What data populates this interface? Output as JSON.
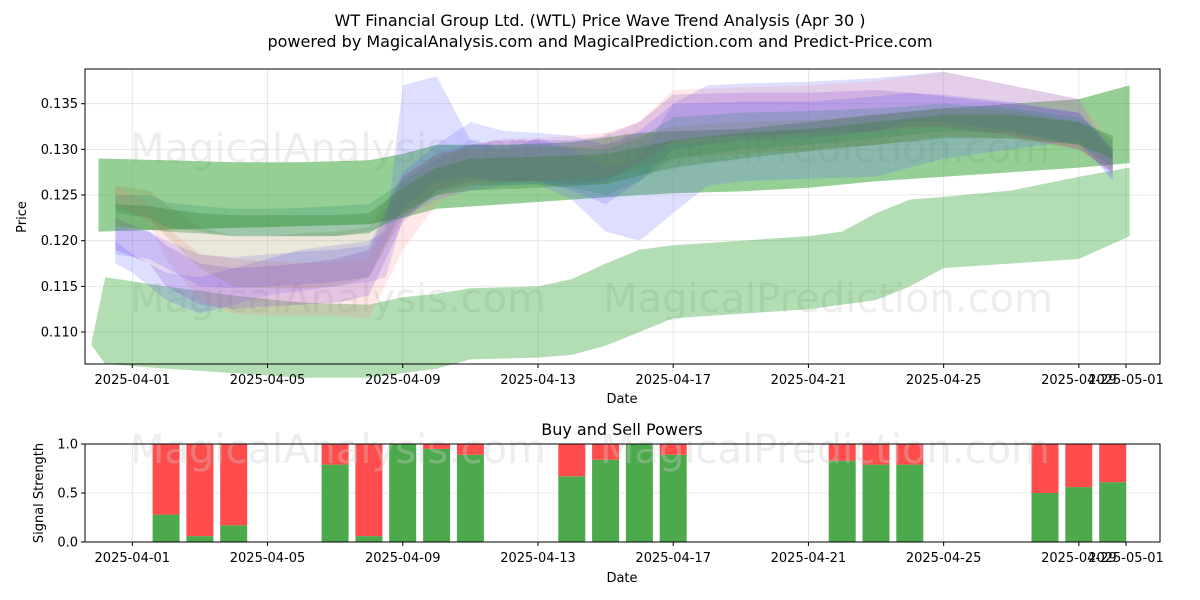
{
  "title_line1": "WT Financial Group Ltd. (WTL) Price Wave Trend Analysis (Apr 30 )",
  "title_line2": "powered by MagicalAnalysis.com and MagicalPrediction.com and Predict-Price.com",
  "watermarks": {
    "top_left": "MagicalAnalysis.com",
    "top_right": "MagicalPrediction.com",
    "mid_left": "MagicalAnalysis.com",
    "mid_right": "MagicalPrediction.com",
    "bottom_left": "MagicalAnalysis.com",
    "bottom_right": "MagicalPrediction.com"
  },
  "chart_data": [
    {
      "type": "area",
      "title": "",
      "xlabel": "Date",
      "ylabel": "Price",
      "xlim": [
        -1.4,
        30.4
      ],
      "ylim": [
        0.1065,
        0.1388
      ],
      "grid": true,
      "x_ticks": [
        {
          "pos": 0,
          "label": "2025-04-01"
        },
        {
          "pos": 4,
          "label": "2025-04-05"
        },
        {
          "pos": 8,
          "label": "2025-04-09"
        },
        {
          "pos": 12,
          "label": "2025-04-13"
        },
        {
          "pos": 16,
          "label": "2025-04-17"
        },
        {
          "pos": 20,
          "label": "2025-04-21"
        },
        {
          "pos": 24,
          "label": "2025-04-25"
        },
        {
          "pos": 28,
          "label": "2025-04-29"
        },
        {
          "pos": 29,
          "label": "2025-05-01"
        }
      ],
      "y_ticks": [
        {
          "value": 0.11,
          "label": "0.110"
        },
        {
          "value": 0.115,
          "label": "0.115"
        },
        {
          "value": 0.12,
          "label": "0.120"
        },
        {
          "value": 0.125,
          "label": "0.125"
        },
        {
          "value": 0.13,
          "label": "0.130"
        },
        {
          "value": 0.135,
          "label": "0.135"
        }
      ],
      "series": [
        {
          "name": "green-wide-lower",
          "color": "#2ca02c",
          "opacity": 0.36,
          "x": [
            -1.2,
            -0.8,
            1,
            3,
            5,
            7,
            8,
            9,
            10,
            12,
            13,
            14,
            15,
            16,
            18,
            20,
            21,
            22,
            23,
            24,
            26,
            28,
            29.5
          ],
          "lower": [
            0.1085,
            0.1065,
            0.106,
            0.1055,
            0.105,
            0.105,
            0.1055,
            0.106,
            0.107,
            0.1072,
            0.1075,
            0.1085,
            0.11,
            0.1115,
            0.112,
            0.1125,
            0.113,
            0.1135,
            0.115,
            0.117,
            0.1175,
            0.118,
            0.1205
          ],
          "upper": [
            0.109,
            0.116,
            0.115,
            0.114,
            0.1132,
            0.113,
            0.1138,
            0.1142,
            0.1148,
            0.115,
            0.1158,
            0.1175,
            0.119,
            0.1195,
            0.12,
            0.1205,
            0.121,
            0.123,
            0.1245,
            0.1248,
            0.1255,
            0.127,
            0.128
          ]
        },
        {
          "name": "green-wide-upper",
          "color": "#2ca02c",
          "opacity": 0.5,
          "x": [
            -1,
            1,
            3,
            5,
            7,
            8,
            9,
            11,
            13,
            15,
            16,
            18,
            20,
            22,
            24,
            26,
            28,
            29.5
          ],
          "lower": [
            0.121,
            0.1212,
            0.1214,
            0.1216,
            0.1218,
            0.1225,
            0.1235,
            0.124,
            0.1245,
            0.125,
            0.1252,
            0.1254,
            0.1258,
            0.1265,
            0.127,
            0.1275,
            0.128,
            0.1285
          ],
          "upper": [
            0.129,
            0.1288,
            0.1286,
            0.1286,
            0.1288,
            0.1295,
            0.1305,
            0.1305,
            0.1308,
            0.1318,
            0.132,
            0.1322,
            0.133,
            0.1338,
            0.1345,
            0.135,
            0.1355,
            0.137
          ]
        },
        {
          "name": "blue-band-1",
          "color": "#6a6aff",
          "opacity": 0.22,
          "x": [
            -0.5,
            0,
            1,
            2,
            3,
            4,
            5,
            6,
            7,
            7.5,
            8,
            9,
            10,
            11,
            12,
            13,
            14,
            15,
            16,
            17,
            18,
            20,
            22,
            24,
            26,
            28,
            29
          ],
          "lower": [
            0.1175,
            0.1165,
            0.1135,
            0.112,
            0.113,
            0.114,
            0.1145,
            0.115,
            0.1155,
            0.116,
            0.1225,
            0.1245,
            0.1255,
            0.126,
            0.1262,
            0.1245,
            0.121,
            0.12,
            0.123,
            0.126,
            0.1265,
            0.1268,
            0.127,
            0.129,
            0.13,
            0.131,
            0.1265
          ],
          "upper": [
            0.12,
            0.1185,
            0.1165,
            0.116,
            0.117,
            0.118,
            0.119,
            0.1195,
            0.12,
            0.121,
            0.137,
            0.138,
            0.131,
            0.13,
            0.1312,
            0.13,
            0.128,
            0.129,
            0.135,
            0.137,
            0.1372,
            0.1374,
            0.1378,
            0.1385,
            0.137,
            0.1355,
            0.129
          ]
        },
        {
          "name": "pink-band",
          "color": "#ff8a8a",
          "opacity": 0.2,
          "x": [
            -0.5,
            0.5,
            1,
            2,
            3,
            4,
            5,
            6,
            7,
            8,
            9,
            10,
            11,
            12,
            13,
            14,
            15,
            16,
            18,
            20,
            22,
            24,
            26,
            28,
            29
          ],
          "lower": [
            0.124,
            0.122,
            0.118,
            0.1135,
            0.112,
            0.1118,
            0.1118,
            0.1118,
            0.1115,
            0.119,
            0.124,
            0.126,
            0.1265,
            0.1265,
            0.1268,
            0.127,
            0.1285,
            0.1305,
            0.131,
            0.1315,
            0.132,
            0.1325,
            0.1315,
            0.13,
            0.1275
          ],
          "upper": [
            0.126,
            0.124,
            0.1215,
            0.1185,
            0.118,
            0.1178,
            0.1176,
            0.1176,
            0.118,
            0.126,
            0.129,
            0.1305,
            0.1312,
            0.1312,
            0.1315,
            0.1318,
            0.133,
            0.1365,
            0.1368,
            0.137,
            0.1375,
            0.1385,
            0.137,
            0.1355,
            0.1305
          ]
        },
        {
          "name": "purple-band",
          "color": "#8844cc",
          "opacity": 0.22,
          "x": [
            -0.5,
            0.5,
            1,
            2,
            3,
            4,
            5,
            6,
            7,
            8,
            9,
            10,
            11,
            12,
            13,
            14,
            15,
            16,
            18,
            20,
            22,
            23,
            24,
            26,
            28,
            29
          ],
          "lower": [
            0.119,
            0.1175,
            0.115,
            0.113,
            0.1125,
            0.1128,
            0.113,
            0.1132,
            0.114,
            0.122,
            0.1255,
            0.1265,
            0.1265,
            0.1265,
            0.1262,
            0.1265,
            0.1285,
            0.131,
            0.1315,
            0.1318,
            0.132,
            0.1325,
            0.1325,
            0.1315,
            0.13,
            0.1275
          ],
          "upper": [
            0.1225,
            0.121,
            0.1195,
            0.1175,
            0.117,
            0.1172,
            0.1175,
            0.118,
            0.119,
            0.127,
            0.1295,
            0.1305,
            0.131,
            0.131,
            0.131,
            0.1315,
            0.133,
            0.136,
            0.1362,
            0.1362,
            0.1365,
            0.1362,
            0.1358,
            0.135,
            0.134,
            0.13
          ]
        },
        {
          "name": "blue-band-2",
          "color": "#4040ff",
          "opacity": 0.16,
          "x": [
            -0.5,
            0.5,
            1,
            2,
            3,
            4,
            5,
            6,
            7,
            8,
            9,
            10,
            11,
            12,
            13,
            14,
            15,
            16,
            18,
            20,
            22,
            23,
            24,
            26,
            28,
            29
          ],
          "lower": [
            0.1185,
            0.118,
            0.117,
            0.115,
            0.1148,
            0.115,
            0.1152,
            0.1155,
            0.116,
            0.1235,
            0.1265,
            0.127,
            0.1265,
            0.1265,
            0.1255,
            0.124,
            0.1265,
            0.13,
            0.131,
            0.1312,
            0.132,
            0.133,
            0.133,
            0.132,
            0.1305,
            0.127
          ],
          "upper": [
            0.1215,
            0.121,
            0.12,
            0.1185,
            0.1182,
            0.1185,
            0.1188,
            0.119,
            0.1195,
            0.1275,
            0.1305,
            0.133,
            0.132,
            0.1318,
            0.1315,
            0.1305,
            0.132,
            0.135,
            0.1352,
            0.1352,
            0.1358,
            0.1362,
            0.136,
            0.1352,
            0.134,
            0.13
          ]
        },
        {
          "name": "olive-band",
          "color": "#8f7a3a",
          "opacity": 0.18,
          "x": [
            -0.5,
            0.5,
            1,
            2,
            3,
            4,
            5,
            6,
            7,
            8,
            9,
            10,
            12,
            14,
            16,
            18,
            20,
            22,
            24,
            26,
            28,
            29
          ],
          "lower": [
            0.1235,
            0.1225,
            0.1205,
            0.117,
            0.115,
            0.1148,
            0.1148,
            0.115,
            0.116,
            0.1225,
            0.1255,
            0.1262,
            0.1265,
            0.1268,
            0.129,
            0.1295,
            0.13,
            0.1305,
            0.1315,
            0.1312,
            0.13,
            0.1275
          ],
          "upper": [
            0.126,
            0.1255,
            0.124,
            0.1215,
            0.1205,
            0.1205,
            0.1208,
            0.121,
            0.1215,
            0.127,
            0.1295,
            0.13,
            0.1302,
            0.1305,
            0.1325,
            0.133,
            0.1332,
            0.1338,
            0.1345,
            0.1342,
            0.133,
            0.13
          ]
        },
        {
          "name": "teal-band",
          "color": "#1f8f6a",
          "opacity": 0.22,
          "x": [
            -0.5,
            0.5,
            1,
            2,
            3,
            4,
            5,
            6,
            7,
            8,
            9,
            10,
            12,
            13,
            14,
            15,
            16,
            18,
            20,
            22,
            24,
            26,
            28,
            29
          ],
          "lower": [
            0.123,
            0.1225,
            0.1215,
            0.121,
            0.1205,
            0.1205,
            0.1205,
            0.1205,
            0.121,
            0.1225,
            0.125,
            0.126,
            0.1262,
            0.1258,
            0.125,
            0.1265,
            0.129,
            0.13,
            0.1305,
            0.1312,
            0.132,
            0.1318,
            0.1305,
            0.128
          ],
          "upper": [
            0.125,
            0.125,
            0.1242,
            0.1238,
            0.1235,
            0.1235,
            0.1236,
            0.1238,
            0.124,
            0.1265,
            0.129,
            0.1305,
            0.1305,
            0.1302,
            0.13,
            0.1312,
            0.1335,
            0.134,
            0.1342,
            0.1345,
            0.135,
            0.1345,
            0.1335,
            0.131
          ]
        },
        {
          "name": "green-core",
          "color": "#2f7f2f",
          "opacity": 0.3,
          "x": [
            -0.5,
            0.5,
            1,
            2,
            3,
            4,
            5,
            6,
            7,
            8,
            9,
            10,
            12,
            14,
            16,
            18,
            20,
            22,
            24,
            26,
            28,
            29
          ],
          "lower": [
            0.1215,
            0.1212,
            0.121,
            0.1208,
            0.1205,
            0.1205,
            0.1205,
            0.1205,
            0.1208,
            0.123,
            0.125,
            0.1255,
            0.1258,
            0.1262,
            0.128,
            0.129,
            0.1298,
            0.1305,
            0.1312,
            0.1312,
            0.1305,
            0.129
          ],
          "upper": [
            0.124,
            0.1238,
            0.1235,
            0.123,
            0.1228,
            0.1228,
            0.1228,
            0.1228,
            0.123,
            0.1258,
            0.128,
            0.129,
            0.1292,
            0.1295,
            0.131,
            0.1318,
            0.1322,
            0.133,
            0.1338,
            0.1338,
            0.133,
            0.1315
          ]
        }
      ]
    },
    {
      "type": "bar",
      "title": "Buy and Sell Powers",
      "xlabel": "Date",
      "ylabel": "Signal Strength",
      "xlim": [
        -1.4,
        30.4
      ],
      "ylim": [
        0,
        1
      ],
      "grid": true,
      "x_ticks": [
        {
          "pos": 0,
          "label": "2025-04-01"
        },
        {
          "pos": 4,
          "label": "2025-04-05"
        },
        {
          "pos": 8,
          "label": "2025-04-09"
        },
        {
          "pos": 12,
          "label": "2025-04-13"
        },
        {
          "pos": 16,
          "label": "2025-04-17"
        },
        {
          "pos": 20,
          "label": "2025-04-21"
        },
        {
          "pos": 24,
          "label": "2025-04-25"
        },
        {
          "pos": 28,
          "label": "2025-04-29"
        },
        {
          "pos": 29,
          "label": "2025-05-01"
        }
      ],
      "y_ticks": [
        {
          "value": 0.0,
          "label": "0.0"
        },
        {
          "value": 0.5,
          "label": "0.5"
        },
        {
          "value": 1.0,
          "label": "1.0"
        }
      ],
      "buy_color": "#4caa4c",
      "sell_color": "#ff4c4c",
      "bars": [
        {
          "date": "2025-04-02",
          "pos": 1,
          "buy": 0.28
        },
        {
          "date": "2025-04-03",
          "pos": 2,
          "buy": 0.06
        },
        {
          "date": "2025-04-04",
          "pos": 3,
          "buy": 0.17
        },
        {
          "date": "2025-04-07",
          "pos": 6,
          "buy": 0.79
        },
        {
          "date": "2025-04-08",
          "pos": 7,
          "buy": 0.06
        },
        {
          "date": "2025-04-09",
          "pos": 8,
          "buy": 1.0
        },
        {
          "date": "2025-04-10",
          "pos": 9,
          "buy": 0.95
        },
        {
          "date": "2025-04-11",
          "pos": 10,
          "buy": 0.89
        },
        {
          "date": "2025-04-14",
          "pos": 13,
          "buy": 0.67
        },
        {
          "date": "2025-04-15",
          "pos": 14,
          "buy": 0.84
        },
        {
          "date": "2025-04-16",
          "pos": 15,
          "buy": 1.0
        },
        {
          "date": "2025-04-17",
          "pos": 16,
          "buy": 0.89
        },
        {
          "date": "2025-04-22",
          "pos": 21,
          "buy": 0.83
        },
        {
          "date": "2025-04-23",
          "pos": 22,
          "buy": 0.79
        },
        {
          "date": "2025-04-24",
          "pos": 23,
          "buy": 0.79
        },
        {
          "date": "2025-04-28",
          "pos": 27,
          "buy": 0.5
        },
        {
          "date": "2025-04-29",
          "pos": 28,
          "buy": 0.56
        },
        {
          "date": "2025-04-30",
          "pos": 29,
          "buy": 0.61
        }
      ]
    }
  ]
}
